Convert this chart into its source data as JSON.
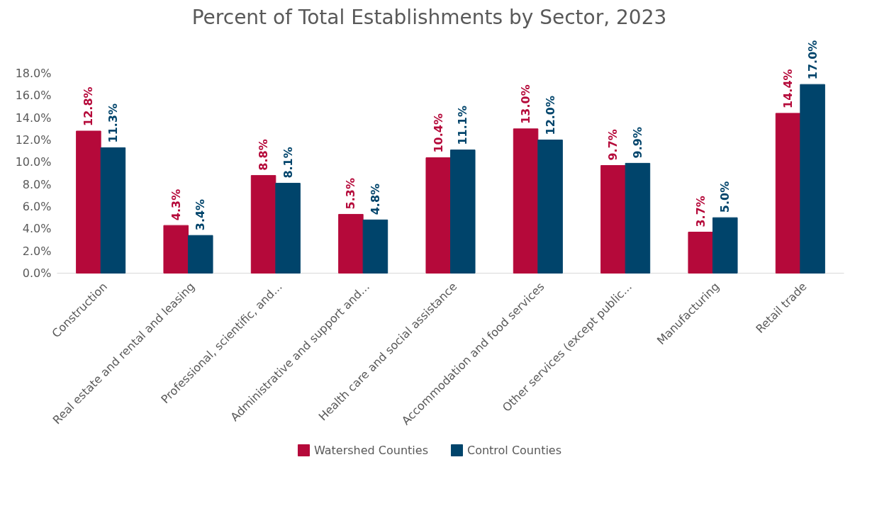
{
  "chart_data": {
    "type": "bar",
    "title": "Percent of Total Establishments by Sector, 2023",
    "categories": [
      "Construction",
      "Real estate and rental and leasing",
      "Professional, scientific, and...",
      "Administrative and support and...",
      "Health care and social assistance",
      "Accommodation and food services",
      "Other services (except public...",
      "Manufacturing",
      "Retail trade"
    ],
    "series": [
      {
        "name": "Watershed Counties",
        "color": "#b5093a",
        "values": [
          12.8,
          4.3,
          8.8,
          5.3,
          10.4,
          13.0,
          9.7,
          3.7,
          14.4
        ],
        "value_labels": [
          "12.8%",
          "4.3%",
          "8.8%",
          "5.3%",
          "10.4%",
          "13.0%",
          "9.7%",
          "3.7%",
          "14.4%"
        ]
      },
      {
        "name": "Control Counties",
        "color": "#00446b",
        "values": [
          11.3,
          3.4,
          8.1,
          4.8,
          11.1,
          12.0,
          9.9,
          5.0,
          17.0
        ],
        "value_labels": [
          "11.3%",
          "3.4%",
          "8.1%",
          "4.8%",
          "11.1%",
          "12.0%",
          "9.9%",
          "5.0%",
          "17.0%"
        ]
      }
    ],
    "ylim": [
      0,
      18
    ],
    "yticks": [
      {
        "value": 0,
        "label": "0.0%"
      },
      {
        "value": 2,
        "label": "2.0%"
      },
      {
        "value": 4,
        "label": "4.0%"
      },
      {
        "value": 6,
        "label": "6.0%"
      },
      {
        "value": 8,
        "label": "8.0%"
      },
      {
        "value": 10,
        "label": "10.0%"
      },
      {
        "value": 12,
        "label": "12.0%"
      },
      {
        "value": 14,
        "label": "14.0%"
      },
      {
        "value": 16,
        "label": "16.0%"
      },
      {
        "value": 18,
        "label": "18.0%"
      }
    ],
    "grid": false,
    "legend": "bottom"
  }
}
